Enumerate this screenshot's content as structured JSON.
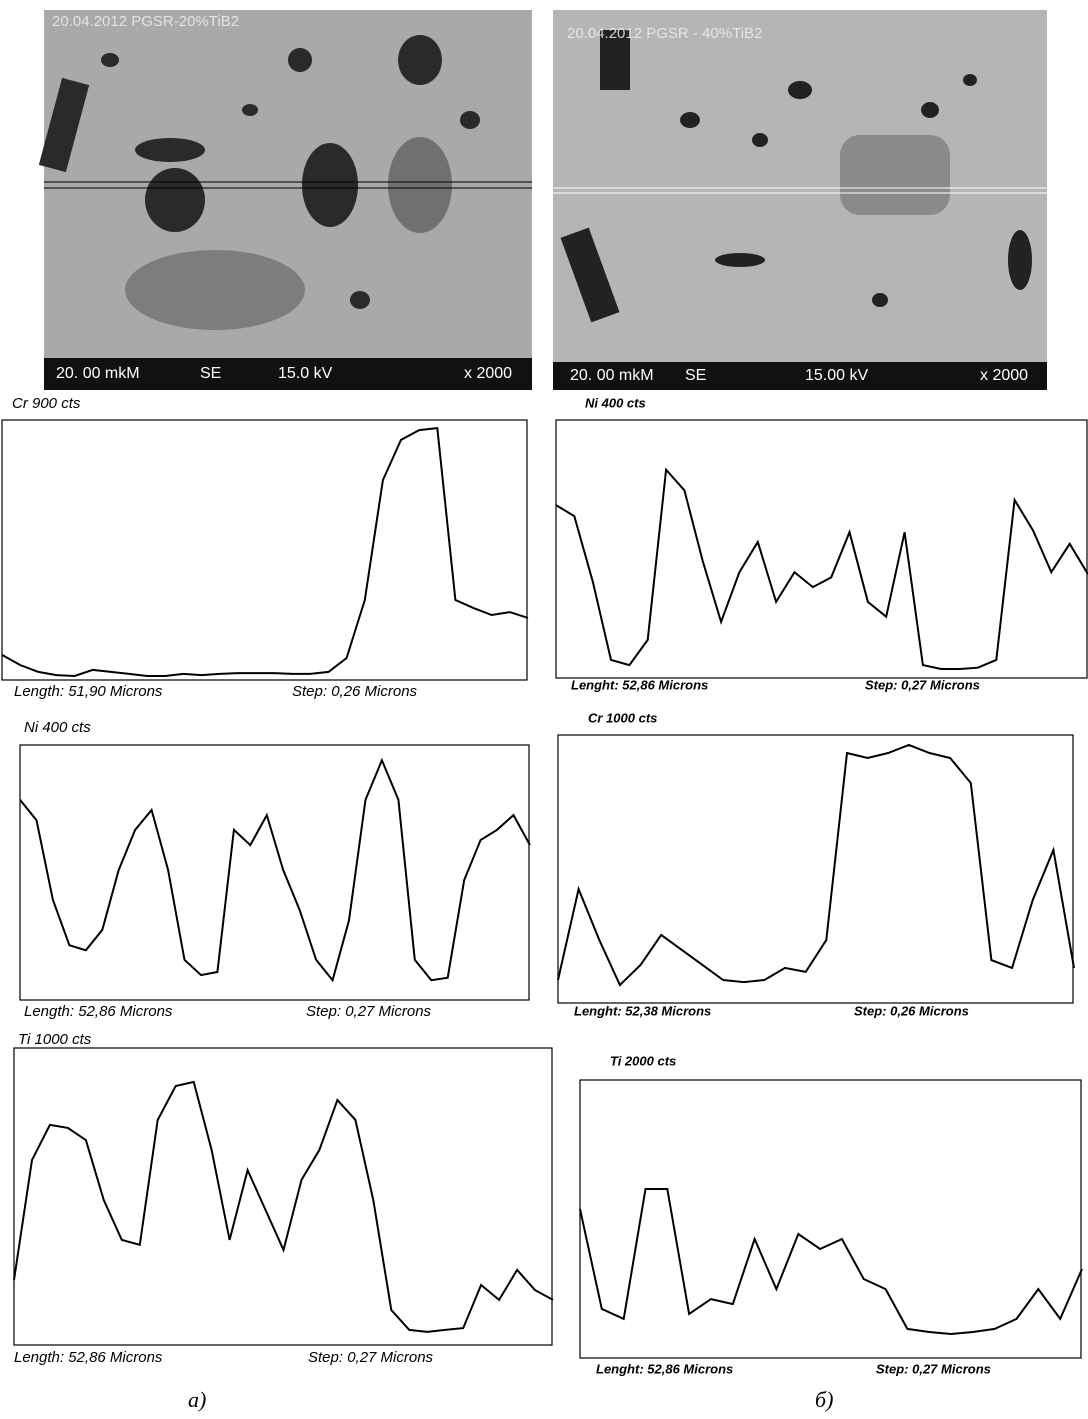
{
  "images": [
    {
      "header": "20.04.2012 PGSR-20%TiB2",
      "scale": "20. 00 mkM",
      "mode": "SE",
      "voltage": "15.0 kV",
      "magnification": "x 2000"
    },
    {
      "header": "20.04.2012 PGSR - 40%TiB2",
      "scale": "20. 00 mkM",
      "mode": "SE",
      "voltage": "15.00 kV",
      "magnification": "x 2000"
    }
  ],
  "captions": [
    "а)",
    "б)"
  ],
  "chart_data": [
    {
      "type": "line",
      "title": "Cr 900 cts",
      "ylim": [
        0,
        900
      ],
      "length": "Length: 51,90 Microns",
      "step": "Step: 0,26 Microns",
      "values": [
        87,
        52,
        28,
        17,
        14,
        35,
        28,
        21,
        14,
        14,
        21,
        17,
        21,
        24,
        24,
        24,
        21,
        21,
        28,
        76,
        277,
        692,
        831,
        865,
        872,
        277,
        249,
        225,
        235,
        215
      ]
    },
    {
      "type": "line",
      "title": "Ni 400 cts",
      "ylim": [
        0,
        400
      ],
      "length": "Length: 52,86 Microns",
      "step": "Step: 0,27 Microns",
      "values": [
        314,
        282,
        157,
        86,
        78,
        110,
        204,
        267,
        298,
        204,
        63,
        39,
        44,
        267,
        243,
        290,
        204,
        141,
        63,
        31,
        125,
        314,
        376,
        314,
        63,
        31,
        35,
        188,
        251,
        267,
        290,
        243
      ]
    },
    {
      "type": "line",
      "title": "Ti 1000 cts",
      "ylim": [
        0,
        1000
      ],
      "length": "Length: 52,86 Microns",
      "step": "Step: 0,27 Microns",
      "values": [
        219,
        623,
        741,
        731,
        690,
        488,
        354,
        337,
        758,
        872,
        886,
        657,
        354,
        589,
        455,
        320,
        556,
        657,
        825,
        758,
        488,
        118,
        51,
        44,
        51,
        57,
        202,
        152,
        253,
        185,
        152
      ]
    },
    {
      "type": "line",
      "title": "Ni 400 cts",
      "ylim": [
        0,
        400
      ],
      "length": "Lenght: 52,86 Microns",
      "step": "Step: 0,27 Microns",
      "values": [
        268,
        251,
        150,
        28,
        20,
        59,
        323,
        291,
        181,
        87,
        164,
        211,
        118,
        164,
        141,
        156,
        226,
        118,
        95,
        226,
        20,
        14,
        14,
        16,
        28,
        276,
        229,
        164,
        208,
        161
      ]
    },
    {
      "type": "line",
      "title": "Cr 1000 cts",
      "ylim": [
        0,
        1000
      ],
      "length": "Lenght: 52,38 Microns",
      "step": "Step: 0,26 Microns",
      "values": [
        86,
        425,
        235,
        67,
        142,
        254,
        198,
        142,
        86,
        78,
        86,
        131,
        116,
        235,
        933,
        914,
        933,
        963,
        933,
        914,
        821,
        160,
        131,
        384,
        571,
        131
      ]
    },
    {
      "type": "line",
      "title": "Ti 2000 cts",
      "ylim": [
        0,
        2000
      ],
      "length": "Lenght: 52,86 Microns",
      "step": "Step: 0,27 Microns",
      "values": [
        1072,
        353,
        281,
        1216,
        1216,
        317,
        424,
        388,
        856,
        496,
        892,
        784,
        856,
        568,
        496,
        209,
        187,
        173,
        187,
        209,
        281,
        496,
        281,
        640
      ]
    }
  ]
}
